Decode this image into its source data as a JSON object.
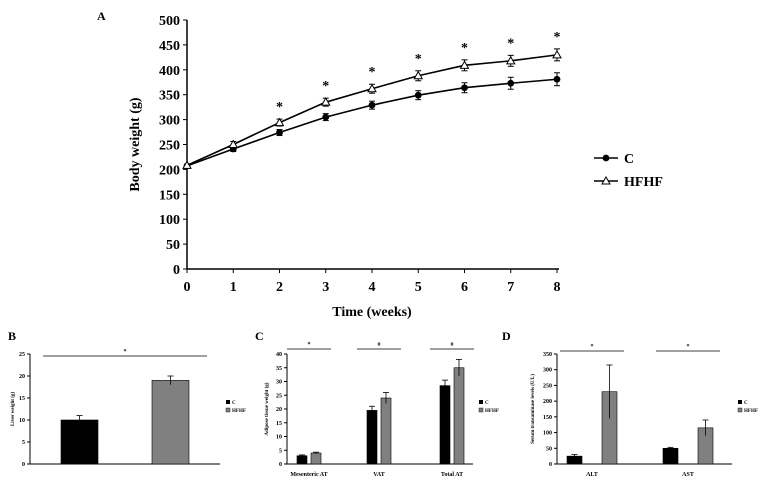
{
  "colors": {
    "c_bar": "#000000",
    "hfhf_bar": "#808080",
    "line": "#000000"
  },
  "chart_data": [
    {
      "panel": "A",
      "type": "line",
      "xlabel": "Time (weeks)",
      "ylabel": "Body weight (g)",
      "x": [
        0,
        1,
        2,
        3,
        4,
        5,
        6,
        7,
        8
      ],
      "xticks": [
        "0",
        "1",
        "2",
        "3",
        "4",
        "5",
        "6",
        "7",
        "8"
      ],
      "ylim": [
        0,
        500
      ],
      "yticks": [
        "0",
        "50",
        "100",
        "150",
        "200",
        "250",
        "300",
        "350",
        "400",
        "450",
        "500"
      ],
      "series": [
        {
          "name": "C",
          "marker": "circle",
          "values": [
            207,
            241,
            274,
            305,
            329,
            349,
            364,
            373,
            381
          ],
          "errors": [
            0,
            5,
            6,
            7,
            8,
            9,
            10,
            12,
            13
          ]
        },
        {
          "name": "HFHF",
          "marker": "triangle",
          "values": [
            208,
            250,
            294,
            335,
            362,
            388,
            409,
            418,
            430
          ],
          "errors": [
            0,
            6,
            7,
            8,
            9,
            10,
            11,
            11,
            12
          ]
        }
      ],
      "significance": {
        "label": "*",
        "at_x": [
          2,
          3,
          4,
          5,
          6,
          7,
          8
        ]
      },
      "legend": "right"
    },
    {
      "panel": "B",
      "type": "bar",
      "ylabel": "Liver weight (g)",
      "ylim": [
        0,
        25
      ],
      "yticks": [
        "0",
        "5",
        "10",
        "15",
        "20",
        "25"
      ],
      "categories": [
        ""
      ],
      "series": [
        {
          "name": "C",
          "values": [
            10
          ],
          "errors": [
            1
          ]
        },
        {
          "name": "HFHF",
          "values": [
            19
          ],
          "errors": [
            1
          ]
        }
      ],
      "significance": [
        {
          "label": "*"
        }
      ],
      "legend": "right"
    },
    {
      "panel": "C",
      "type": "bar",
      "ylabel": "Adipose tissue weight (g)",
      "ylim": [
        0,
        40
      ],
      "yticks": [
        "0",
        "5",
        "10",
        "15",
        "20",
        "25",
        "30",
        "35",
        "40"
      ],
      "categories": [
        "Mesenteric AT",
        "VAT",
        "Total AT"
      ],
      "series": [
        {
          "name": "C",
          "values": [
            3,
            19.5,
            28.5
          ],
          "errors": [
            0.3,
            1.5,
            2
          ]
        },
        {
          "name": "HFHF",
          "values": [
            4,
            24,
            35
          ],
          "errors": [
            0.3,
            2,
            3
          ]
        }
      ],
      "significance": [
        {
          "label": "*"
        },
        {
          "label": "#"
        },
        {
          "label": "#"
        }
      ],
      "legend": "right"
    },
    {
      "panel": "D",
      "type": "bar",
      "ylabel": "Serum transaminase levels (U/L)",
      "ylim": [
        0,
        350
      ],
      "yticks": [
        "0",
        "50",
        "100",
        "150",
        "200",
        "250",
        "300",
        "350"
      ],
      "categories": [
        "ALT",
        "AST"
      ],
      "series": [
        {
          "name": "C",
          "values": [
            25,
            50
          ],
          "errors": [
            5,
            3
          ]
        },
        {
          "name": "HFHF",
          "values": [
            230,
            115
          ],
          "errors": [
            85,
            25
          ]
        }
      ],
      "significance": [
        {
          "label": "*"
        },
        {
          "label": "*"
        }
      ],
      "legend": "right"
    }
  ]
}
